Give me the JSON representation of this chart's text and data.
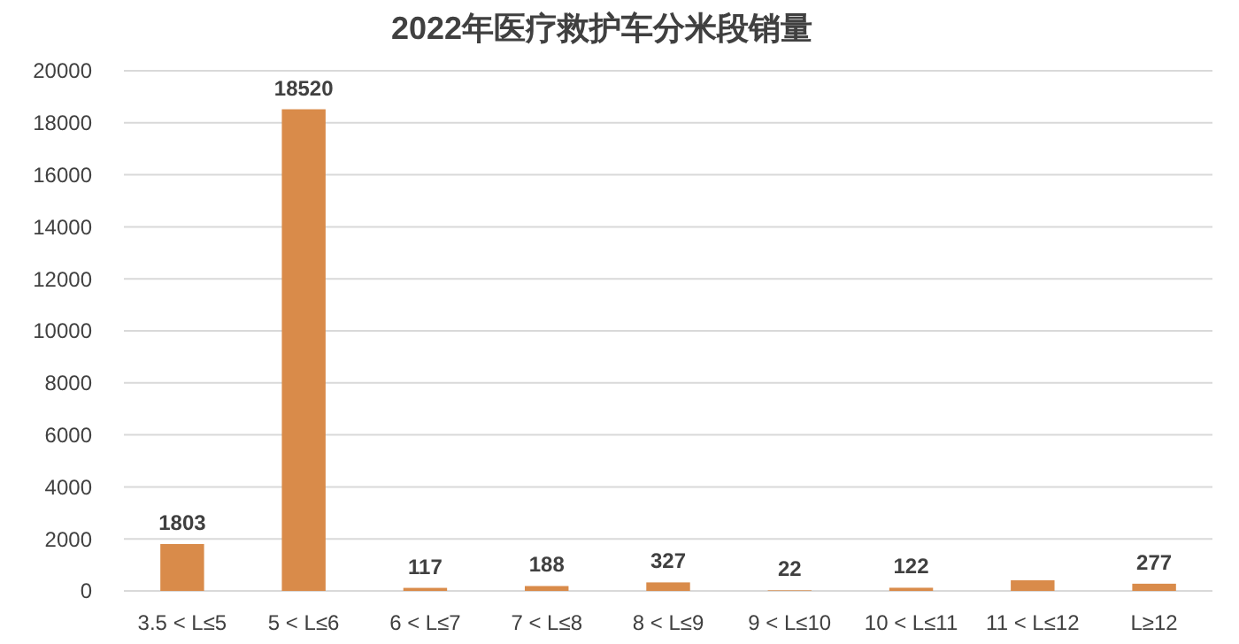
{
  "chart_data": {
    "type": "bar",
    "title": "2022年医疗救护车分米段销量",
    "categories": [
      "3.5 < L≤5",
      "5 < L≤6",
      "6 < L≤7",
      "7 < L≤8",
      "8 < L≤9",
      "9 < L≤10",
      "10 < L≤11",
      "11 < L≤12",
      "L≥12"
    ],
    "values": [
      1803,
      18520,
      117,
      188,
      327,
      22,
      122,
      410,
      277
    ],
    "value_labels": [
      "1803",
      "18520",
      "117",
      "188",
      "327",
      "22",
      "122",
      null,
      "277"
    ],
    "color": "#d98b4a",
    "ylim": [
      0,
      20000
    ],
    "yticks": [
      0,
      2000,
      4000,
      6000,
      8000,
      10000,
      12000,
      14000,
      16000,
      18000,
      20000
    ],
    "grid": "y"
  }
}
